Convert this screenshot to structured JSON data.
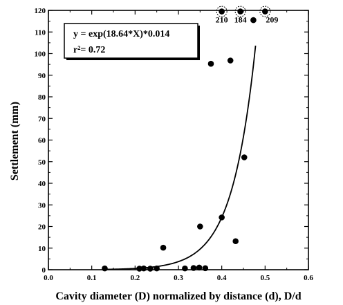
{
  "chart_data": {
    "type": "scatter",
    "title": "",
    "xlabel": "Cavity diameter (D) normalized by distance (d), D/d",
    "ylabel": "Settlement (mm)",
    "xlim": [
      0.0,
      0.6
    ],
    "ylim": [
      0,
      120
    ],
    "x_ticks": [
      "0.0",
      "0.1",
      "0.2",
      "0.3",
      "0.4",
      "0.5",
      "0.6"
    ],
    "y_ticks": [
      "0",
      "10",
      "20",
      "30",
      "40",
      "50",
      "60",
      "70",
      "80",
      "90",
      "100",
      "110",
      "120"
    ],
    "grid": false,
    "marker_color": "#000000",
    "points": [
      {
        "x": 0.13,
        "y": 0.6
      },
      {
        "x": 0.21,
        "y": 0.5
      },
      {
        "x": 0.22,
        "y": 0.6
      },
      {
        "x": 0.235,
        "y": 0.5
      },
      {
        "x": 0.25,
        "y": 0.6
      },
      {
        "x": 0.265,
        "y": 10.2
      },
      {
        "x": 0.315,
        "y": 0.6
      },
      {
        "x": 0.335,
        "y": 0.8
      },
      {
        "x": 0.348,
        "y": 1.0
      },
      {
        "x": 0.35,
        "y": 20.0
      },
      {
        "x": 0.362,
        "y": 0.7
      },
      {
        "x": 0.375,
        "y": 95.3
      },
      {
        "x": 0.4,
        "y": 24.2
      },
      {
        "x": 0.42,
        "y": 96.8
      },
      {
        "x": 0.432,
        "y": 13.2
      },
      {
        "x": 0.452,
        "y": 52.0
      },
      {
        "x": 0.473,
        "y": 115.5
      }
    ],
    "offscale_points": [
      {
        "x": 0.4,
        "y": 119.5,
        "label": "210"
      },
      {
        "x": 0.443,
        "y": 119.5,
        "label": "184"
      },
      {
        "x": 0.5,
        "y": 119.5,
        "label": "209"
      }
    ],
    "fit": {
      "type": "exponential",
      "a": 0.014,
      "b": 18.64,
      "x_range": [
        0.13,
        0.478
      ],
      "equation": "y = exp(18.64*X)*0.014",
      "r_squared": "r²= 0.72"
    },
    "legend_placement": "top-left"
  }
}
